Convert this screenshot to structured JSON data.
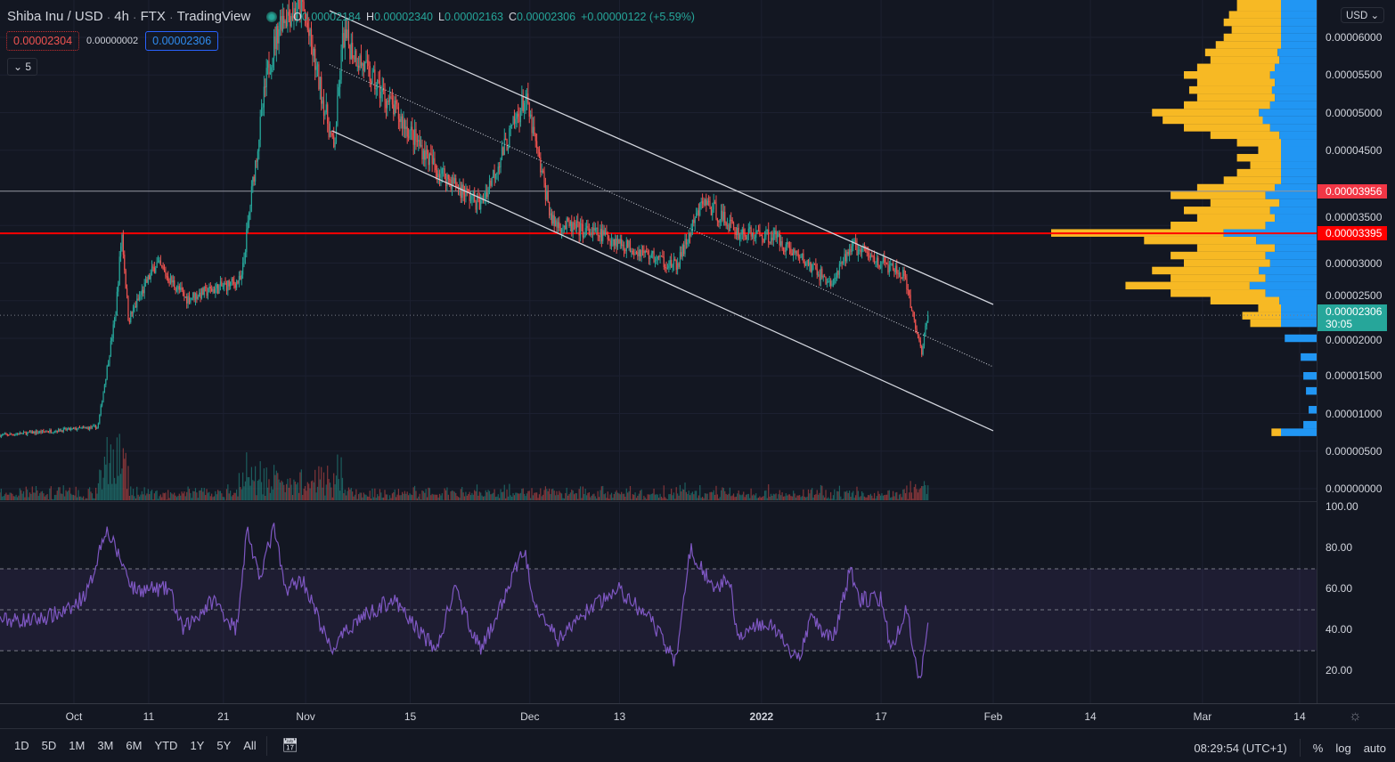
{
  "header": {
    "symbol": "Shiba Inu / USD",
    "interval": "4h",
    "exchange": "FTX",
    "source": "TradingView",
    "ohlc": {
      "o_label": "O",
      "o": "0.00002184",
      "h_label": "H",
      "h": "0.00002340",
      "l_label": "L",
      "l": "0.00002163",
      "c_label": "C",
      "c": "0.00002306",
      "change": "+0.00000122 (+5.59%)"
    },
    "sell_price": "0.00002304",
    "spread": "0.00000002",
    "buy_price": "0.00002306",
    "indicators_collapsed": "5"
  },
  "price_axis": {
    "currency": "USD",
    "ticks": [
      "0.00000000",
      "0.00000500",
      "0.00001000",
      "0.00001500",
      "0.00002000",
      "0.00002500",
      "0.00003000",
      "0.00003500",
      "0.00004500",
      "0.00005000",
      "0.00005500",
      "0.00006000"
    ],
    "tick_values": [
      0,
      5e-06,
      1e-05,
      1.5e-05,
      2e-05,
      2.5e-05,
      3e-05,
      3.5e-05,
      4.5e-05,
      5e-05,
      5.5e-05,
      6e-05
    ],
    "tags": [
      {
        "text": "0.00003956",
        "value": 3.956e-05,
        "color": "#f23645"
      },
      {
        "text": "0.00003395",
        "value": 3.395e-05,
        "color": "#ff0000"
      }
    ],
    "current": {
      "text": "0.00002306",
      "countdown": "30:05",
      "value": 2.306e-05,
      "color": "#26a69a"
    }
  },
  "rsi_axis": {
    "ticks": [
      "100.00",
      "80.00",
      "60.00",
      "40.00",
      "20.00"
    ],
    "tick_values": [
      100,
      80,
      60,
      40,
      20
    ],
    "band": [
      30,
      70
    ],
    "mid": 50
  },
  "time_axis": {
    "labels": [
      {
        "text": "Oct",
        "day": 0
      },
      {
        "text": "11",
        "day": 10
      },
      {
        "text": "21",
        "day": 20
      },
      {
        "text": "Nov",
        "day": 31
      },
      {
        "text": "15",
        "day": 45
      },
      {
        "text": "Dec",
        "day": 61
      },
      {
        "text": "13",
        "day": 73
      },
      {
        "text": "2022",
        "day": 92,
        "bold": true
      },
      {
        "text": "17",
        "day": 108
      },
      {
        "text": "Feb",
        "day": 123
      },
      {
        "text": "14",
        "day": 136
      },
      {
        "text": "Mar",
        "day": 151
      },
      {
        "text": "14",
        "day": 164
      }
    ]
  },
  "bottom_bar": {
    "ranges": [
      "1D",
      "5D",
      "1M",
      "3M",
      "6M",
      "YTD",
      "1Y",
      "5Y",
      "All"
    ],
    "clock": "08:29:54 (UTC+1)",
    "percent": "%",
    "log": "log",
    "auto": "auto"
  },
  "colors": {
    "up": "#26a69a",
    "down": "#ef5350",
    "rsi": "#7e57c2",
    "profile_up": "#2196f3",
    "profile_down": "#f7b924"
  },
  "chart_data": {
    "type": "candlestick",
    "title": "Shiba Inu / USD 4h",
    "x_unit": "days since Oct 1 2021",
    "price_path": [
      [
        -9.9,
        7.1e-06
      ],
      [
        3.2,
        8.2e-06
      ],
      [
        5.6,
        2.35e-05
      ],
      [
        6.4,
        3.42e-05
      ],
      [
        7.3,
        2.24e-05
      ],
      [
        11,
        3e-05
      ],
      [
        15,
        2.53e-05
      ],
      [
        22.4,
        2.77e-05
      ],
      [
        24,
        4.13e-05
      ],
      [
        25.9,
        5.55e-05
      ],
      [
        27.7,
        6.26e-05
      ],
      [
        30.6,
        6.4e-05
      ],
      [
        34.8,
        4.49e-05
      ],
      [
        36,
        6.02e-05
      ],
      [
        40,
        5.43e-05
      ],
      [
        48.5,
        4.25e-05
      ],
      [
        54.4,
        3.77e-05
      ],
      [
        60.4,
        5.2e-05
      ],
      [
        64,
        3.54e-05
      ],
      [
        71,
        3.36e-05
      ],
      [
        80.6,
        2.95e-05
      ],
      [
        84.2,
        3.83e-05
      ],
      [
        89,
        3.4e-05
      ],
      [
        93.7,
        3.36e-05
      ],
      [
        101.5,
        2.71e-05
      ],
      [
        104,
        3.24e-05
      ],
      [
        111,
        2.83e-05
      ],
      [
        113.4,
        1.82e-05
      ],
      [
        114.3,
        2.306e-05
      ]
    ],
    "rsi_path": [
      [
        -9.9,
        45
      ],
      [
        -5.1,
        45
      ],
      [
        -0.4,
        50
      ],
      [
        2,
        60
      ],
      [
        4.2,
        90
      ],
      [
        6.2,
        75
      ],
      [
        8,
        60
      ],
      [
        12.8,
        60
      ],
      [
        14.5,
        40
      ],
      [
        18.7,
        55
      ],
      [
        21.7,
        40
      ],
      [
        23.2,
        90
      ],
      [
        24.7,
        65
      ],
      [
        26.8,
        90
      ],
      [
        28.2,
        60
      ],
      [
        30.6,
        65
      ],
      [
        34.4,
        30
      ],
      [
        37.8,
        45
      ],
      [
        42.6,
        55
      ],
      [
        48.5,
        30
      ],
      [
        50.9,
        60
      ],
      [
        54.5,
        30
      ],
      [
        56.9,
        50
      ],
      [
        60.2,
        80
      ],
      [
        61.6,
        55
      ],
      [
        64.6,
        35
      ],
      [
        68.8,
        50
      ],
      [
        72.9,
        60
      ],
      [
        77.1,
        45
      ],
      [
        80.5,
        25
      ],
      [
        82.5,
        80
      ],
      [
        85.5,
        60
      ],
      [
        87.8,
        65
      ],
      [
        88.8,
        35
      ],
      [
        92.6,
        45
      ],
      [
        96.8,
        25
      ],
      [
        98.6,
        45
      ],
      [
        101.5,
        35
      ],
      [
        103.9,
        70
      ],
      [
        105.1,
        55
      ],
      [
        108.1,
        55
      ],
      [
        109.3,
        30
      ],
      [
        111.4,
        50
      ],
      [
        113.2,
        15
      ],
      [
        114.3,
        45
      ]
    ],
    "trendlines": [
      {
        "name": "channel-upper",
        "style": "solid",
        "from": [
          34.2,
          6.355e-05
        ],
        "to": [
          123,
          2.45e-05
        ]
      },
      {
        "name": "channel-mid",
        "style": "dotted",
        "from": [
          34.2,
          5.64e-05
        ],
        "to": [
          123,
          1.62e-05
        ]
      },
      {
        "name": "channel-lower",
        "style": "solid",
        "from": [
          34.5,
          4.76e-05
        ],
        "to": [
          123,
          7.7e-06
        ]
      }
    ],
    "horizontal_lines": [
      {
        "value": 3.956e-05,
        "color": "#9598a1"
      },
      {
        "value": 3.395e-05,
        "color": "#ff0000"
      }
    ],
    "volume_profile": [
      [
        7.5e-06,
        0.17
      ],
      [
        8.5e-06,
        0.05
      ],
      [
        1.05e-05,
        0.03
      ],
      [
        1.3e-05,
        0.04
      ],
      [
        1.5e-05,
        0.05
      ],
      [
        1.75e-05,
        0.06
      ],
      [
        2e-05,
        0.12
      ],
      [
        2.2e-05,
        0.25
      ],
      [
        2.3e-05,
        0.28
      ],
      [
        2.4e-05,
        0.22
      ],
      [
        2.5e-05,
        0.4
      ],
      [
        2.6e-05,
        0.55
      ],
      [
        2.7e-05,
        0.72
      ],
      [
        2.8e-05,
        0.55
      ],
      [
        2.9e-05,
        0.62
      ],
      [
        3e-05,
        0.5
      ],
      [
        3.1e-05,
        0.55
      ],
      [
        3.2e-05,
        0.45
      ],
      [
        3.3e-05,
        0.65
      ],
      [
        3.4e-05,
        1.0
      ],
      [
        3.5e-05,
        0.55
      ],
      [
        3.6e-05,
        0.45
      ],
      [
        3.7e-05,
        0.5
      ],
      [
        3.8e-05,
        0.4
      ],
      [
        3.9e-05,
        0.55
      ],
      [
        4e-05,
        0.45
      ],
      [
        4.1e-05,
        0.35
      ],
      [
        4.2e-05,
        0.3
      ],
      [
        4.3e-05,
        0.25
      ],
      [
        4.4e-05,
        0.3
      ],
      [
        4.5e-05,
        0.22
      ],
      [
        4.6e-05,
        0.3
      ],
      [
        4.7e-05,
        0.4
      ],
      [
        4.8e-05,
        0.5
      ],
      [
        4.9e-05,
        0.58
      ],
      [
        5e-05,
        0.62
      ],
      [
        5.1e-05,
        0.5
      ],
      [
        5.2e-05,
        0.45
      ],
      [
        5.3e-05,
        0.48
      ],
      [
        5.4e-05,
        0.45
      ],
      [
        5.5e-05,
        0.5
      ],
      [
        5.6e-05,
        0.45
      ],
      [
        5.7e-05,
        0.4
      ],
      [
        5.8e-05,
        0.42
      ],
      [
        5.9e-05,
        0.38
      ],
      [
        6e-05,
        0.35
      ],
      [
        6.1e-05,
        0.32
      ],
      [
        6.2e-05,
        0.35
      ],
      [
        6.3e-05,
        0.33
      ],
      [
        6.4e-05,
        0.3
      ],
      [
        6.5e-05,
        0.3
      ]
    ],
    "profile_up_share": 0.35
  }
}
